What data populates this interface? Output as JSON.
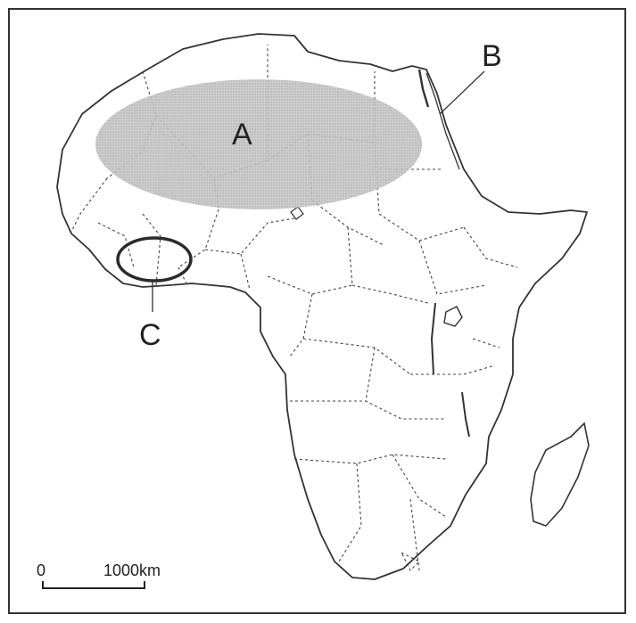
{
  "map": {
    "labels": {
      "a": "A",
      "b": "B",
      "c": "C"
    },
    "scale_bar": {
      "start": "0",
      "end": "1000km"
    },
    "colors": {
      "coastline": "#333333",
      "borders": "#444444",
      "region_a_fill": "#bdbdbd",
      "region_c_stroke": "#2a2a2a"
    }
  }
}
